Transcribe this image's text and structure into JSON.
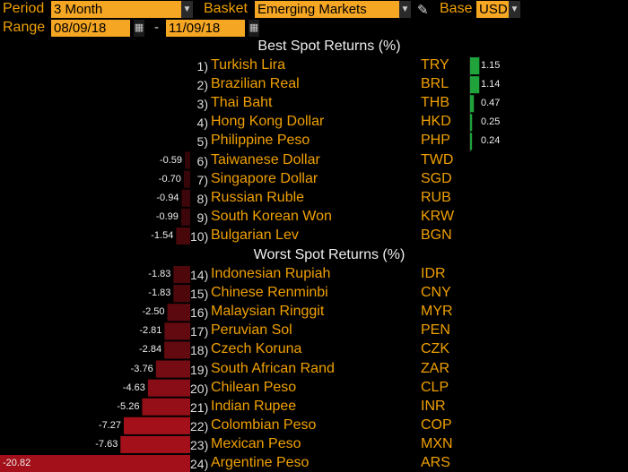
{
  "toolbar": {
    "period_label": "Period",
    "period_value": "3 Month",
    "basket_label": "Basket",
    "basket_value": "Emerging Markets",
    "base_label": "Base",
    "base_value": "USD",
    "range_label": "Range",
    "range_start": "08/09/18",
    "range_end": "11/09/18",
    "range_separator": "-"
  },
  "icons": {
    "dropdown": "chevron-down-icon",
    "calendar": "calendar-icon",
    "edit": "pencil-icon"
  },
  "colors": {
    "positive": "#1fa33a",
    "negative": "#a3101a",
    "label": "#f0a000",
    "field_bg": "#f5a623"
  },
  "sections": {
    "best_title": "Best Spot Returns (%)",
    "worst_title": "Worst Spot Returns (%)"
  },
  "best": [
    {
      "rank": "1)",
      "name": "Turkish Lira",
      "code": "TRY",
      "value": 1.15,
      "label": "1.15"
    },
    {
      "rank": "2)",
      "name": "Brazilian Real",
      "code": "BRL",
      "value": 1.14,
      "label": "1.14"
    },
    {
      "rank": "3)",
      "name": "Thai Baht",
      "code": "THB",
      "value": 0.47,
      "label": "0.47"
    },
    {
      "rank": "4)",
      "name": "Hong Kong Dollar",
      "code": "HKD",
      "value": 0.25,
      "label": "0.25"
    },
    {
      "rank": "5)",
      "name": "Philippine Peso",
      "code": "PHP",
      "value": 0.24,
      "label": "0.24"
    },
    {
      "rank": "6)",
      "name": "Taiwanese Dollar",
      "code": "TWD",
      "value": -0.59,
      "label": "-0.59"
    },
    {
      "rank": "7)",
      "name": "Singapore Dollar",
      "code": "SGD",
      "value": -0.7,
      "label": "-0.70"
    },
    {
      "rank": "8)",
      "name": "Russian Ruble",
      "code": "RUB",
      "value": -0.94,
      "label": "-0.94"
    },
    {
      "rank": "9)",
      "name": "South Korean Won",
      "code": "KRW",
      "value": -0.99,
      "label": "-0.99"
    },
    {
      "rank": "10)",
      "name": "Bulgarian Lev",
      "code": "BGN",
      "value": -1.54,
      "label": "-1.54"
    }
  ],
  "worst": [
    {
      "rank": "14)",
      "name": "Indonesian Rupiah",
      "code": "IDR",
      "value": -1.83,
      "label": "-1.83"
    },
    {
      "rank": "15)",
      "name": "Chinese Renminbi",
      "code": "CNY",
      "value": -1.83,
      "label": "-1.83"
    },
    {
      "rank": "16)",
      "name": "Malaysian Ringgit",
      "code": "MYR",
      "value": -2.5,
      "label": "-2.50"
    },
    {
      "rank": "17)",
      "name": "Peruvian Sol",
      "code": "PEN",
      "value": -2.81,
      "label": "-2.81"
    },
    {
      "rank": "18)",
      "name": "Czech Koruna",
      "code": "CZK",
      "value": -2.84,
      "label": "-2.84"
    },
    {
      "rank": "19)",
      "name": "South African Rand",
      "code": "ZAR",
      "value": -3.76,
      "label": "-3.76"
    },
    {
      "rank": "20)",
      "name": "Chilean Peso",
      "code": "CLP",
      "value": -4.63,
      "label": "-4.63"
    },
    {
      "rank": "21)",
      "name": "Indian Rupee",
      "code": "INR",
      "value": -5.26,
      "label": "-5.26"
    },
    {
      "rank": "22)",
      "name": "Colombian Peso",
      "code": "COP",
      "value": -7.27,
      "label": "-7.27"
    },
    {
      "rank": "23)",
      "name": "Mexican Peso",
      "code": "MXN",
      "value": -7.63,
      "label": "-7.63"
    },
    {
      "rank": "24)",
      "name": "Argentine Peso",
      "code": "ARS",
      "value": -20.82,
      "label": "-20.82"
    }
  ]
}
